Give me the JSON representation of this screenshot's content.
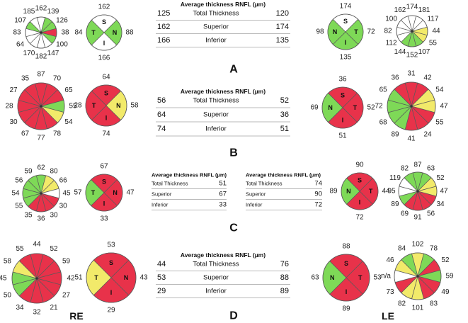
{
  "colors": {
    "green": "#7ed957",
    "yellow": "#f2ea6a",
    "red": "#e8324a",
    "white": "#ffffff",
    "stroke": "#5a5a5a"
  },
  "eye_labels": {
    "right": "RE",
    "left": "LE"
  },
  "panels": [
    {
      "letter": "A",
      "clock_right": {
        "values": [
          "162",
          "139",
          "126",
          "38",
          "100",
          "147",
          "182",
          "170",
          "64",
          "83",
          "107",
          "185"
        ],
        "colors": [
          "white",
          "green",
          "green",
          "red",
          "green",
          "white",
          "white",
          "white",
          "white",
          "white",
          "green",
          "white"
        ]
      },
      "quad_right": {
        "S": "162",
        "N": "88",
        "I": "166",
        "T": "84",
        "colors": {
          "S": "white",
          "N": "green",
          "I": "white",
          "T": "green"
        }
      },
      "table": {
        "title": "Average thickness RNFL (µm)",
        "rows": [
          {
            "label": "Total Thickness",
            "re": "125",
            "le": "120"
          },
          {
            "label": "Superior",
            "re": "162",
            "le": "174"
          },
          {
            "label": "Inferior",
            "re": "166",
            "le": "135"
          }
        ]
      },
      "quad_left": {
        "S": "174",
        "N": "98",
        "I": "135",
        "T": "72",
        "colors": {
          "S": "white",
          "N": "green",
          "I": "green",
          "T": "green"
        }
      },
      "clock_left": {
        "values": [
          "174",
          "181",
          "117",
          "44",
          "55",
          "107",
          "152",
          "144",
          "112",
          "82",
          "100",
          "162"
        ],
        "colors": [
          "white",
          "white",
          "white",
          "yellow",
          "yellow",
          "green",
          "green",
          "green",
          "white",
          "white",
          "white",
          "white"
        ]
      }
    },
    {
      "letter": "B",
      "clock_right": {
        "values": [
          "87",
          "70",
          "65",
          "55",
          "54",
          "78",
          "77",
          "67",
          "30",
          "28",
          "27",
          "35"
        ],
        "colors": [
          "red",
          "red",
          "red",
          "green",
          "yellow",
          "red",
          "red",
          "red",
          "red",
          "red",
          "red",
          "red"
        ]
      },
      "quad_right": {
        "S": "64",
        "N": "58",
        "I": "74",
        "T": "28",
        "colors": {
          "S": "red",
          "N": "yellow",
          "I": "red",
          "T": "red"
        }
      },
      "table": {
        "title": "Average thickness RNFL (µm)",
        "rows": [
          {
            "label": "Total Thickness",
            "re": "56",
            "le": "52"
          },
          {
            "label": "Superior",
            "re": "64",
            "le": "36"
          },
          {
            "label": "Inferior",
            "re": "74",
            "le": "51"
          }
        ]
      },
      "quad_left": {
        "S": "36",
        "N": "69",
        "I": "51",
        "T": "52",
        "colors": {
          "S": "red",
          "N": "green",
          "I": "red",
          "T": "red"
        }
      },
      "clock_left": {
        "values": [
          "31",
          "42",
          "54",
          "47",
          "55",
          "24",
          "41",
          "89",
          "68",
          "72",
          "65",
          "36"
        ],
        "colors": [
          "red",
          "red",
          "yellow",
          "yellow",
          "red",
          "red",
          "red",
          "green",
          "green",
          "green",
          "green",
          "red"
        ]
      }
    },
    {
      "letter": "C",
      "clock_right": {
        "values": [
          "62",
          "80",
          "66",
          "45",
          "30",
          "30",
          "36",
          "35",
          "55",
          "54",
          "56",
          "59"
        ],
        "colors": [
          "green",
          "yellow",
          "yellow",
          "white",
          "red",
          "red",
          "red",
          "red",
          "green",
          "green",
          "green",
          "green"
        ]
      },
      "quad_right": {
        "S": "67",
        "N": "47",
        "I": "33",
        "T": "57",
        "colors": {
          "S": "red",
          "N": "red",
          "I": "red",
          "T": "green"
        }
      },
      "table_re": {
        "title": "Average thickness RNFL (µm)",
        "rows": [
          {
            "label": "Total Thickness",
            "value": "51"
          },
          {
            "label": "Superior",
            "value": "67"
          },
          {
            "label": "Inferior",
            "value": "33"
          }
        ]
      },
      "table_le": {
        "title": "Average thickness RNFL (µm)",
        "rows": [
          {
            "label": "Total Thickness",
            "value": "74"
          },
          {
            "label": "Superior",
            "value": "90"
          },
          {
            "label": "Inferior",
            "value": "72"
          }
        ]
      },
      "quad_left": {
        "S": "90",
        "N": "89",
        "I": "72",
        "T": "44",
        "colors": {
          "S": "red",
          "N": "green",
          "I": "red",
          "T": "red"
        }
      },
      "clock_left": {
        "values": [
          "87",
          "63",
          "52",
          "47",
          "34",
          "56",
          "91",
          "69",
          "89",
          "95",
          "119",
          "82"
        ],
        "colors": [
          "green",
          "green",
          "yellow",
          "yellow",
          "red",
          "red",
          "red",
          "red",
          "green",
          "white",
          "white",
          "green"
        ]
      }
    },
    {
      "letter": "D",
      "clock_right": {
        "values": [
          "44",
          "52",
          "59",
          "42",
          "27",
          "21",
          "32",
          "34",
          "50",
          "45",
          "58",
          "55"
        ],
        "colors": [
          "red",
          "red",
          "red",
          "red",
          "red",
          "red",
          "red",
          "red",
          "green",
          "green",
          "yellow",
          "red"
        ]
      },
      "quad_right": {
        "S": "53",
        "N": "43",
        "I": "29",
        "T": "51",
        "colors": {
          "S": "red",
          "N": "red",
          "I": "red",
          "T": "yellow"
        }
      },
      "table": {
        "title": "Average thickness RNFL (µm)",
        "rows": [
          {
            "label": "Total Thickness",
            "re": "44",
            "le": "76"
          },
          {
            "label": "Superior",
            "re": "53",
            "le": "88"
          },
          {
            "label": "Inferior",
            "re": "29",
            "le": "89"
          }
        ]
      },
      "quad_left": {
        "S": "88",
        "N": "63",
        "I": "89",
        "T": "53",
        "colors": {
          "S": "red",
          "N": "green",
          "I": "red",
          "T": "red"
        }
      },
      "clock_left": {
        "values": [
          "102",
          "78",
          "52",
          "59",
          "49",
          "83",
          "101",
          "82",
          "73",
          "n/a",
          "46",
          "84"
        ],
        "colors": [
          "yellow",
          "green",
          "red",
          "green",
          "red",
          "red",
          "yellow",
          "yellow",
          "red",
          "white",
          "yellow",
          "green"
        ]
      }
    }
  ]
}
